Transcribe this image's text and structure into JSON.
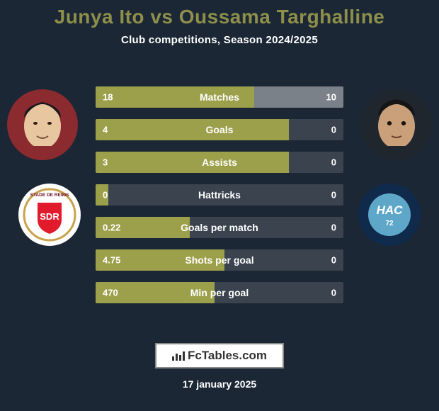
{
  "title": "Junya Ito vs Oussama Targhalline",
  "subtitle": "Club competitions, Season 2024/2025",
  "date": "17 january 2025",
  "brand": "FcTables.com",
  "colors": {
    "background": "#1b2735",
    "title": "#8d8f4a",
    "subtitle": "#ffffff",
    "bar_left": "#9da04b",
    "bar_right": "#7a8189",
    "bar_track": "#3a434e",
    "row_min_left_pct": 5,
    "row_min_right_pct": 0
  },
  "player_left": {
    "name": "Junya Ito",
    "photo_bg": "#8b2a2f",
    "skin": "#e8c6a0",
    "hair": "#1a1a1a",
    "club_name": "Stade de Reims",
    "club_badge": {
      "outer": "#ffffff",
      "ring": "#c9a24a",
      "shield": "#e11b2c",
      "text": "SDR"
    }
  },
  "player_right": {
    "name": "Oussama Targhalline",
    "photo_bg": "#20262d",
    "skin": "#caa07a",
    "hair": "#151515",
    "club_name": "Le Havre AC",
    "club_badge": {
      "outer": "#0f2a4a",
      "inner": "#5fa7c9",
      "text": "HAC",
      "year": "72"
    }
  },
  "stats": [
    {
      "label": "Matches",
      "left_val": "18",
      "right_val": "10",
      "left_pct": 64,
      "right_pct": 36
    },
    {
      "label": "Goals",
      "left_val": "4",
      "right_val": "0",
      "left_pct": 78,
      "right_pct": 0
    },
    {
      "label": "Assists",
      "left_val": "3",
      "right_val": "0",
      "left_pct": 78,
      "right_pct": 0
    },
    {
      "label": "Hattricks",
      "left_val": "0",
      "right_val": "0",
      "left_pct": 5,
      "right_pct": 0
    },
    {
      "label": "Goals per match",
      "left_val": "0.22",
      "right_val": "0",
      "left_pct": 38,
      "right_pct": 0
    },
    {
      "label": "Shots per goal",
      "left_val": "4.75",
      "right_val": "0",
      "left_pct": 52,
      "right_pct": 0
    },
    {
      "label": "Min per goal",
      "left_val": "470",
      "right_val": "0",
      "left_pct": 48,
      "right_pct": 0
    }
  ]
}
